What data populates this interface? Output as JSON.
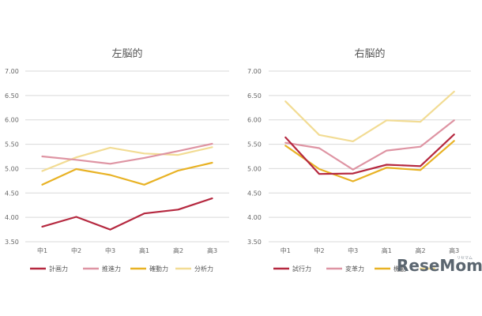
{
  "chart_data": [
    {
      "type": "line",
      "title": "左脳的",
      "categories": [
        "中1",
        "中2",
        "中3",
        "高1",
        "高2",
        "高3"
      ],
      "ylim": [
        3.5,
        7.0
      ],
      "yticks": [
        "7.00",
        "6.50",
        "6.00",
        "5.50",
        "5.00",
        "4.50",
        "4.00",
        "3.50"
      ],
      "series": [
        {
          "name": "計画力",
          "color": "#b5283f",
          "values": [
            3.81,
            4.01,
            3.75,
            4.08,
            4.16,
            4.39
          ]
        },
        {
          "name": "推進力",
          "color": "#de94a3",
          "values": [
            5.25,
            5.18,
            5.1,
            5.22,
            5.36,
            5.51
          ]
        },
        {
          "name": "確動力",
          "color": "#e8b224",
          "values": [
            4.67,
            4.99,
            4.87,
            4.67,
            4.96,
            5.12
          ]
        },
        {
          "name": "分析力",
          "color": "#f2dc94",
          "values": [
            4.95,
            5.23,
            5.43,
            5.31,
            5.28,
            5.44
          ]
        }
      ]
    },
    {
      "type": "line",
      "title": "右脳的",
      "categories": [
        "中1",
        "中2",
        "中3",
        "高1",
        "高2",
        "高3"
      ],
      "ylim": [
        3.5,
        7.0
      ],
      "yticks": [
        "7.00",
        "6.50",
        "6.00",
        "5.50",
        "5.00",
        "4.50",
        "4.00",
        "3.50"
      ],
      "series": [
        {
          "name": "試行力",
          "color": "#b5283f",
          "values": [
            5.64,
            4.89,
            4.9,
            5.08,
            5.05,
            5.7
          ]
        },
        {
          "name": "変革力",
          "color": "#de94a3",
          "values": [
            5.53,
            5.42,
            4.98,
            5.37,
            5.45,
            5.99
          ]
        },
        {
          "name": "機動",
          "color": "#e8b224",
          "values": [
            5.47,
            4.99,
            4.74,
            5.02,
            4.97,
            5.57
          ]
        },
        {
          "name": "",
          "color": "#f2dc94",
          "values": [
            6.38,
            5.69,
            5.56,
            5.99,
            5.96,
            6.58
          ]
        }
      ]
    }
  ],
  "watermark": {
    "brand": "ReseMom",
    "sub": "リセマム"
  }
}
